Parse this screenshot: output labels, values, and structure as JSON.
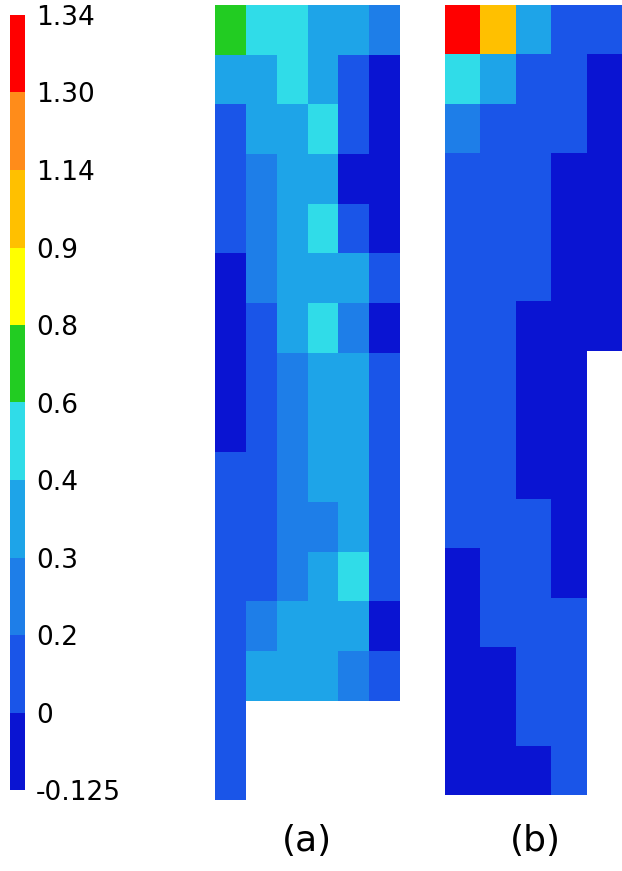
{
  "chart_data": {
    "type": "heatmap",
    "tick_labels": false,
    "colorbar_range": [
      -0.125,
      1.34
    ],
    "colorbar_ticks": [
      -0.125,
      0,
      0.2,
      0.3,
      0.4,
      0.6,
      0.8,
      0.9,
      1.14,
      {
        "value": 1.3,
        "label": "1.30"
      },
      1.34
    ],
    "colors": [
      "#0a14d2",
      "#1a55e8",
      "#1e7ee8",
      "#1ea4e8",
      "#30dce8",
      "#22cc22",
      "#ffff00",
      "#ffc000",
      "#ff8c1a",
      "#ff0000"
    ],
    "panels": [
      {
        "label": "(a)",
        "cells": [
          [
            0.6,
            0.45,
            0.4,
            0.35,
            0.3,
            0.2
          ],
          [
            0.3,
            0.35,
            0.4,
            0.35,
            0.1,
            -0.05
          ],
          [
            0.1,
            0.3,
            0.35,
            0.4,
            0.0,
            -0.05
          ],
          [
            0.05,
            0.25,
            0.35,
            0.35,
            -0.05,
            -0.05
          ],
          [
            0.0,
            0.2,
            0.35,
            0.4,
            0.1,
            -0.05
          ],
          [
            -0.05,
            0.2,
            0.3,
            0.35,
            0.3,
            0.0
          ],
          [
            -0.05,
            0.15,
            0.3,
            0.4,
            0.2,
            -0.05
          ],
          [
            -0.05,
            0.15,
            0.25,
            0.35,
            0.3,
            0.05
          ],
          [
            -0.05,
            0.1,
            0.25,
            0.3,
            0.35,
            0.0
          ],
          [
            0.0,
            0.1,
            0.2,
            0.3,
            0.35,
            0.1
          ],
          [
            0.0,
            0.1,
            0.2,
            0.25,
            0.35,
            0.0
          ],
          [
            0.05,
            0.15,
            0.25,
            0.3,
            0.4,
            0.1
          ],
          [
            0.05,
            0.2,
            0.35,
            0.3,
            0.3,
            -0.05
          ],
          [
            0.1,
            0.3,
            0.3,
            0.3,
            0.2,
            0.1
          ],
          [
            0.15,
            null,
            null,
            null,
            null,
            null
          ],
          [
            0.05,
            null,
            null,
            null,
            null,
            null
          ]
        ]
      },
      {
        "label": "(b)",
        "cells": [
          [
            1.34,
            0.9,
            0.3,
            0.1,
            0.0
          ],
          [
            0.5,
            0.3,
            0.1,
            0.0,
            -0.05
          ],
          [
            0.2,
            0.15,
            0.05,
            0.0,
            -0.05
          ],
          [
            0.1,
            0.1,
            0.05,
            -0.05,
            -0.05
          ],
          [
            0.05,
            0.1,
            0.0,
            -0.05,
            -0.05
          ],
          [
            0.05,
            0.05,
            0.0,
            -0.05,
            -0.05
          ],
          [
            0.1,
            0.05,
            -0.05,
            -0.05,
            -0.05
          ],
          [
            0.15,
            0.0,
            -0.05,
            -0.05,
            null
          ],
          [
            0.05,
            0.0,
            -0.05,
            -0.05,
            null
          ],
          [
            0.0,
            0.05,
            -0.05,
            -0.05,
            null
          ],
          [
            0.0,
            0.05,
            0.0,
            -0.05,
            null
          ],
          [
            -0.05,
            0.0,
            0.05,
            -0.05,
            null
          ],
          [
            -0.05,
            0.0,
            0.05,
            0.0,
            null
          ],
          [
            -0.05,
            -0.05,
            0.0,
            0.05,
            null
          ],
          [
            -0.05,
            -0.05,
            0.0,
            0.0,
            null
          ],
          [
            -0.05,
            -0.05,
            -0.05,
            0.0,
            null
          ]
        ]
      }
    ]
  }
}
